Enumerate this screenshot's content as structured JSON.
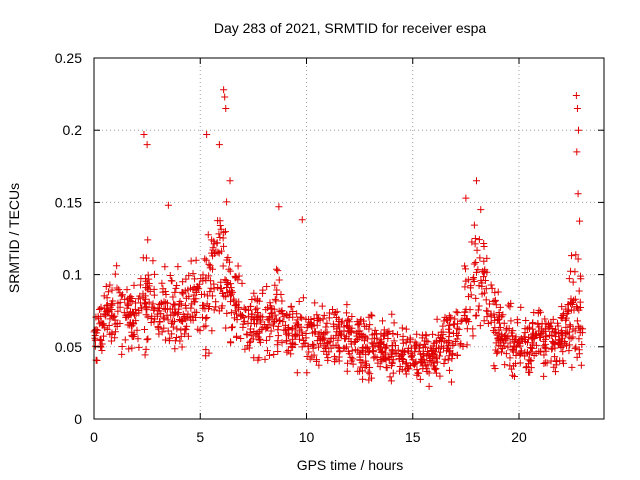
{
  "chart_data": {
    "type": "scatter",
    "title": "Day 283 of 2021, SRMTID for receiver espa",
    "xlabel": "GPS time / hours",
    "ylabel": "SRMTID / TECUs",
    "xlim": [
      0,
      24
    ],
    "ylim": [
      0,
      0.25
    ],
    "x_ticks": [
      0,
      5,
      10,
      15,
      20
    ],
    "x_tick_labels": [
      "0",
      "5",
      "10",
      "15",
      "20"
    ],
    "y_ticks": [
      0,
      0.05,
      0.1,
      0.15,
      0.2,
      0.25
    ],
    "y_tick_labels": [
      "0",
      "0.05",
      "0.1",
      "0.15",
      "0.2",
      "0.25"
    ],
    "grid": true,
    "marker": "+",
    "colors": {
      "series": "#e00000",
      "grid": "#a0a0a0",
      "axis": "#000000"
    },
    "series": [
      {
        "name": "SRMTID",
        "sampled_envelope": {
          "description_hours": [
            0,
            1,
            2,
            2.5,
            3,
            4,
            5,
            5.5,
            6,
            6.5,
            7,
            8,
            8.7,
            9,
            10,
            11,
            12,
            13,
            14,
            15,
            16,
            17,
            17.5,
            18,
            18.5,
            19,
            20,
            21,
            22,
            22.7,
            23
          ],
          "median": [
            0.06,
            0.075,
            0.07,
            0.085,
            0.075,
            0.075,
            0.08,
            0.09,
            0.11,
            0.085,
            0.065,
            0.065,
            0.075,
            0.06,
            0.06,
            0.055,
            0.055,
            0.05,
            0.05,
            0.045,
            0.045,
            0.055,
            0.08,
            0.1,
            0.085,
            0.06,
            0.05,
            0.055,
            0.055,
            0.08,
            0.055
          ],
          "spread": [
            0.03,
            0.035,
            0.035,
            0.05,
            0.035,
            0.04,
            0.045,
            0.06,
            0.08,
            0.05,
            0.035,
            0.035,
            0.045,
            0.035,
            0.035,
            0.035,
            0.03,
            0.03,
            0.028,
            0.025,
            0.025,
            0.03,
            0.05,
            0.05,
            0.045,
            0.035,
            0.03,
            0.03,
            0.03,
            0.07,
            0.03
          ]
        },
        "peaks": [
          {
            "x": 2.35,
            "y": 0.197
          },
          {
            "x": 2.5,
            "y": 0.19
          },
          {
            "x": 3.5,
            "y": 0.148
          },
          {
            "x": 5.3,
            "y": 0.197
          },
          {
            "x": 5.9,
            "y": 0.19
          },
          {
            "x": 6.1,
            "y": 0.228
          },
          {
            "x": 6.15,
            "y": 0.223
          },
          {
            "x": 6.2,
            "y": 0.215
          },
          {
            "x": 6.4,
            "y": 0.165
          },
          {
            "x": 8.7,
            "y": 0.147
          },
          {
            "x": 9.8,
            "y": 0.138
          },
          {
            "x": 17.5,
            "y": 0.153
          },
          {
            "x": 18.0,
            "y": 0.165
          },
          {
            "x": 18.2,
            "y": 0.145
          },
          {
            "x": 22.7,
            "y": 0.224
          },
          {
            "x": 22.75,
            "y": 0.215
          },
          {
            "x": 22.8,
            "y": 0.2
          },
          {
            "x": 22.72,
            "y": 0.185
          },
          {
            "x": 22.78,
            "y": 0.156
          },
          {
            "x": 22.85,
            "y": 0.137
          }
        ]
      }
    ]
  }
}
